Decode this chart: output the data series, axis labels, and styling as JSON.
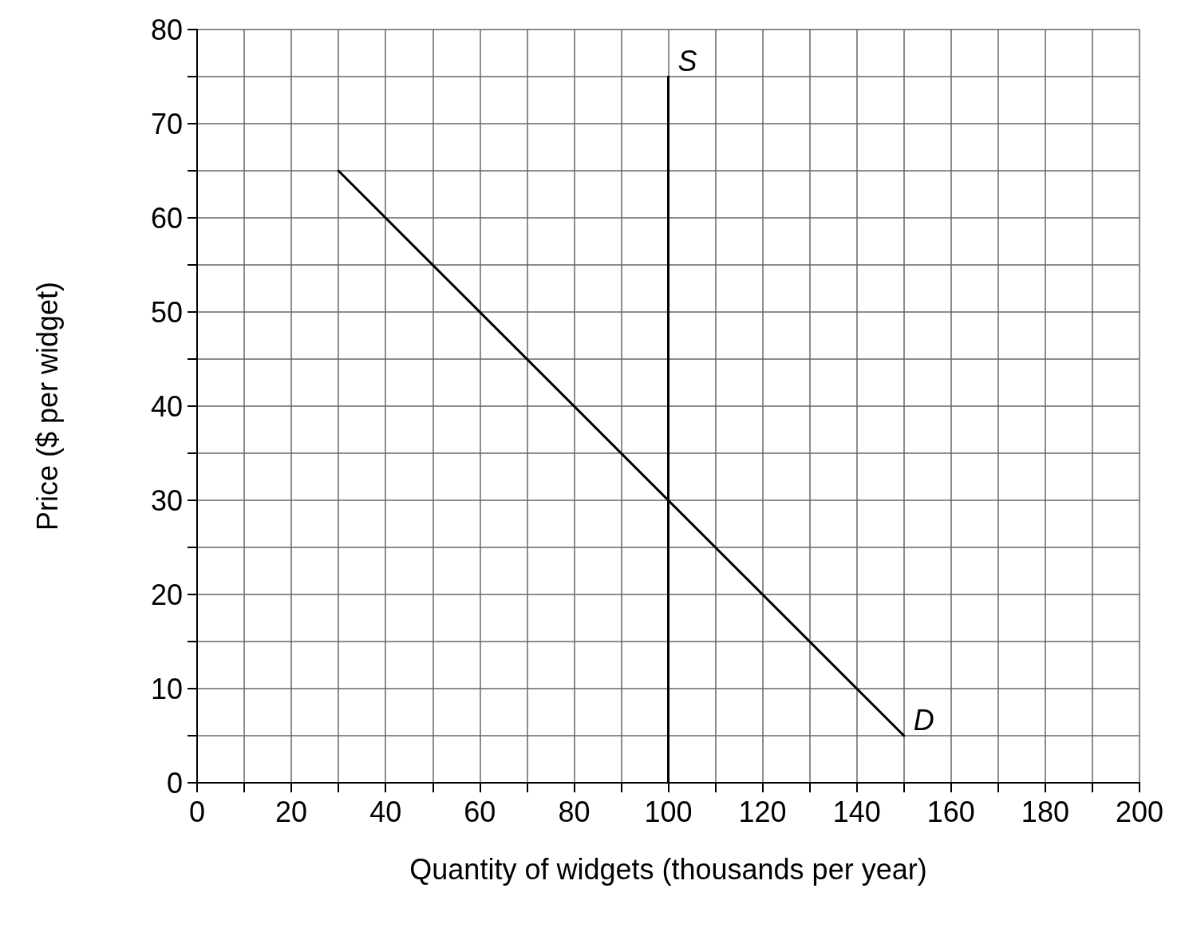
{
  "chart_data": {
    "type": "line",
    "xlabel": "Quantity of widgets (thousands per year)",
    "ylabel": "Price ($ per widget)",
    "xlim": [
      0,
      200
    ],
    "ylim": [
      0,
      80
    ],
    "xticks": [
      0,
      {
        "value": 10,
        "label": null
      },
      20,
      {
        "value": 30,
        "label": null
      },
      40,
      {
        "value": 50,
        "label": null
      },
      60,
      {
        "value": 70,
        "label": null
      },
      80,
      {
        "value": 90,
        "label": null
      },
      100,
      {
        "value": 110,
        "label": null
      },
      120,
      {
        "value": 130,
        "label": null
      },
      140,
      {
        "value": 150,
        "label": null
      },
      160,
      {
        "value": 170,
        "label": null
      },
      180,
      {
        "value": 190,
        "label": null
      },
      200
    ],
    "yticks": [
      0,
      {
        "value": 5,
        "label": null
      },
      10,
      {
        "value": 15,
        "label": null
      },
      20,
      {
        "value": 25,
        "label": null
      },
      30,
      {
        "value": 35,
        "label": null
      },
      40,
      {
        "value": 45,
        "label": null
      },
      50,
      {
        "value": 55,
        "label": null
      },
      60,
      {
        "value": 65,
        "label": null
      },
      70,
      {
        "value": 75,
        "label": null
      },
      80
    ],
    "grid": true,
    "marker": "none",
    "line_style": "solid",
    "legend": false,
    "series": [
      {
        "name": "S",
        "color": "#000000",
        "x": [
          100,
          100
        ],
        "values": [
          0,
          75
        ]
      },
      {
        "name": "D",
        "color": "#000000",
        "x": [
          30,
          150
        ],
        "values": [
          65,
          5
        ]
      }
    ]
  }
}
